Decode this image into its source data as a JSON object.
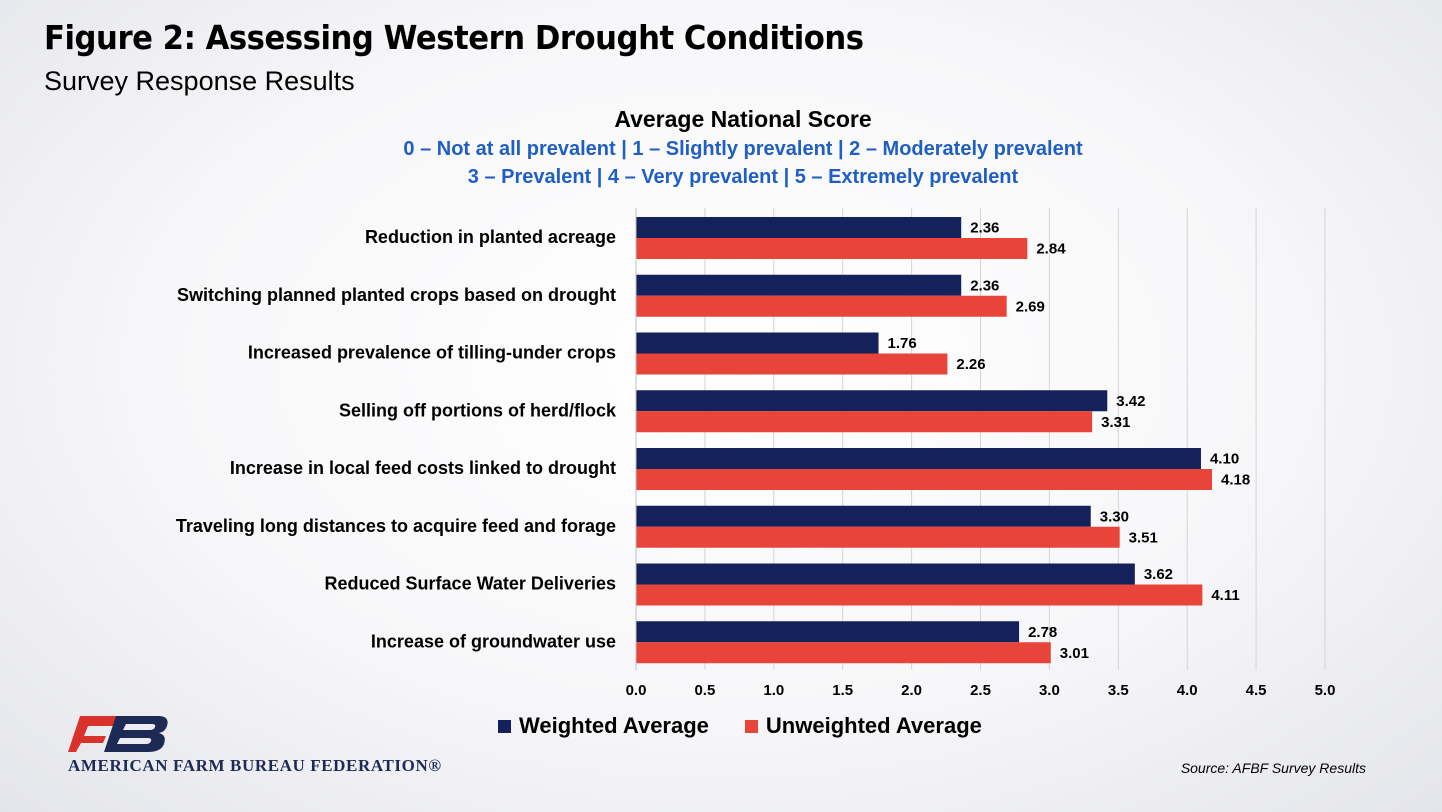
{
  "header": {
    "title": "Figure 2: Assessing Western Drought Conditions",
    "subtitle": "Survey Response Results"
  },
  "chart_data": {
    "type": "bar",
    "orientation": "horizontal",
    "title": "Average National Score",
    "scale_lines": [
      "0 – Not at all prevalent | 1 – Slightly prevalent | 2 – Moderately prevalent",
      "3 – Prevalent | 4 – Very prevalent | 5 – Extremely prevalent"
    ],
    "categories": [
      "Reduction in planted acreage",
      "Switching planned planted crops based on drought",
      "Increased prevalence of tilling-under crops",
      "Selling off portions of herd/flock",
      "Increase in local feed costs linked to drought",
      "Traveling long distances to acquire feed and forage",
      "Reduced Surface Water Deliveries",
      "Increase of groundwater use"
    ],
    "series": [
      {
        "name": "Weighted Average",
        "color": "#14215a",
        "values": [
          2.36,
          2.36,
          1.76,
          3.42,
          4.1,
          3.3,
          3.62,
          2.78
        ],
        "labels": [
          "2.36",
          "2.36",
          "1.76",
          "3.42",
          "4.10",
          "3.30",
          "3.62",
          "2.78"
        ]
      },
      {
        "name": "Unweighted Average",
        "color": "#e8443a",
        "values": [
          2.84,
          2.69,
          2.26,
          3.31,
          4.18,
          3.51,
          4.11,
          3.01
        ],
        "labels": [
          "2.84",
          "2.69",
          "2.26",
          "3.31",
          "4.18",
          "3.51",
          "4.11",
          "3.01"
        ]
      }
    ],
    "xlim": [
      0,
      5
    ],
    "xticks": [
      "0.0",
      "0.5",
      "1.0",
      "1.5",
      "2.0",
      "2.5",
      "3.0",
      "3.5",
      "4.0",
      "4.5",
      "5.0"
    ],
    "grid": true,
    "legend_position": "bottom"
  },
  "logo": {
    "text": "AMERICAN FARM BUREAU FEDERATION®",
    "mark": "FB"
  },
  "source": "Source: AFBF Survey Results"
}
